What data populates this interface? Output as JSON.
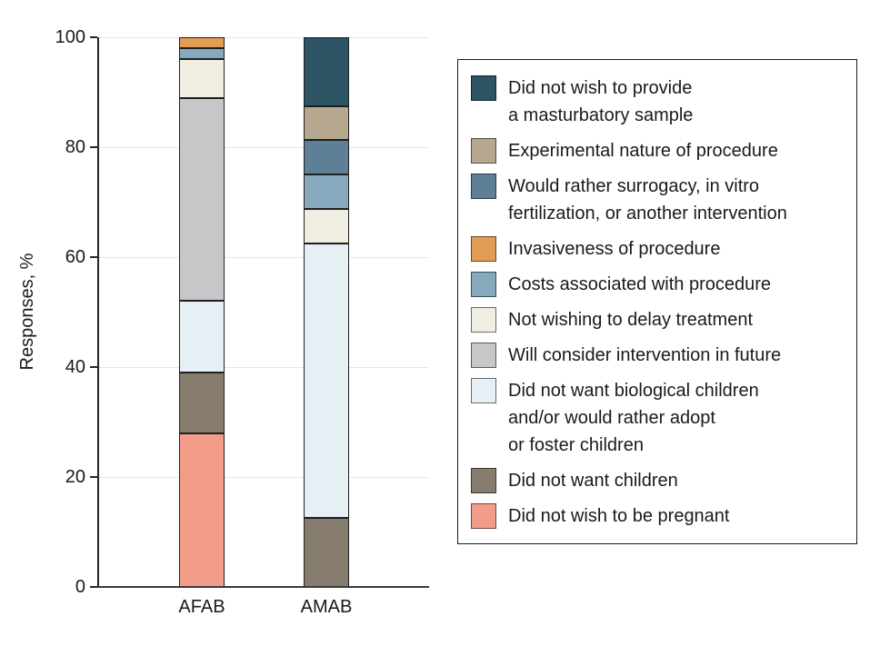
{
  "chart_data": {
    "type": "bar",
    "variant": "stacked",
    "title": "",
    "xlabel": "",
    "ylabel": "Responses, %",
    "ylim": [
      0,
      100
    ],
    "yticks": [
      0,
      20,
      40,
      60,
      80,
      100
    ],
    "grid": "horizontal",
    "legend_position": "right",
    "categories": [
      "AFAB",
      "AMAB"
    ],
    "stack_order": "series listed bottom-to-top",
    "series": [
      {
        "name": "Did not wish to be pregnant",
        "color": "#F29D8A",
        "values": [
          28,
          0
        ]
      },
      {
        "name": "Did not want children",
        "color": "#867C6D",
        "values": [
          11,
          12.5
        ]
      },
      {
        "name": "Did not want biological children and/or would rather adopt or foster children",
        "color": "#E6EFF4",
        "values": [
          13,
          50
        ]
      },
      {
        "name": "Will consider intervention in future",
        "color": "#C7C7C9",
        "values": [
          37,
          0
        ]
      },
      {
        "name": "Not wishing to delay treatment",
        "color": "#EFEEE1",
        "values": [
          7,
          6.25
        ]
      },
      {
        "name": "Costs associated with procedure",
        "color": "#87A9BD",
        "values": [
          2,
          6.25
        ]
      },
      {
        "name": "Invasiveness of procedure",
        "color": "#E39C53",
        "values": [
          2,
          0
        ]
      },
      {
        "name": "Would rather surrogacy, in vitro fertilization, or another intervention",
        "color": "#5E8096",
        "values": [
          0,
          6.25
        ]
      },
      {
        "name": "Experimental nature of procedure",
        "color": "#B5A88F",
        "values": [
          0,
          6.25
        ]
      },
      {
        "name": "Did not wish to provide a masturbatory sample",
        "color": "#2D5464",
        "values": [
          0,
          12.5
        ]
      }
    ]
  },
  "legend": {
    "items": [
      {
        "color": "#2D5464",
        "lines": [
          "Did not wish to provide",
          "a masturbatory sample"
        ]
      },
      {
        "color": "#B5A88F",
        "lines": [
          "Experimental nature of procedure"
        ]
      },
      {
        "color": "#5E8096",
        "lines": [
          "Would rather surrogacy, in vitro",
          "fertilization, or another intervention"
        ]
      },
      {
        "color": "#E39C53",
        "lines": [
          "Invasiveness of procedure"
        ]
      },
      {
        "color": "#87A9BD",
        "lines": [
          "Costs associated with procedure"
        ]
      },
      {
        "color": "#EFEEE1",
        "lines": [
          "Not wishing to delay treatment"
        ]
      },
      {
        "color": "#C7C7C9",
        "lines": [
          "Will consider intervention in future"
        ]
      },
      {
        "color": "#E6EFF4",
        "lines": [
          "Did not want biological children",
          "and/or would rather adopt",
          "or foster children"
        ]
      },
      {
        "color": "#867C6D",
        "lines": [
          "Did not want children"
        ]
      },
      {
        "color": "#F29D8A",
        "lines": [
          "Did not wish to be pregnant"
        ]
      }
    ]
  },
  "colors": {
    "axis": "#262626",
    "grid": "#E7E7E7",
    "segment_border": "#1F1F1F",
    "text": "#1A1A1A"
  }
}
